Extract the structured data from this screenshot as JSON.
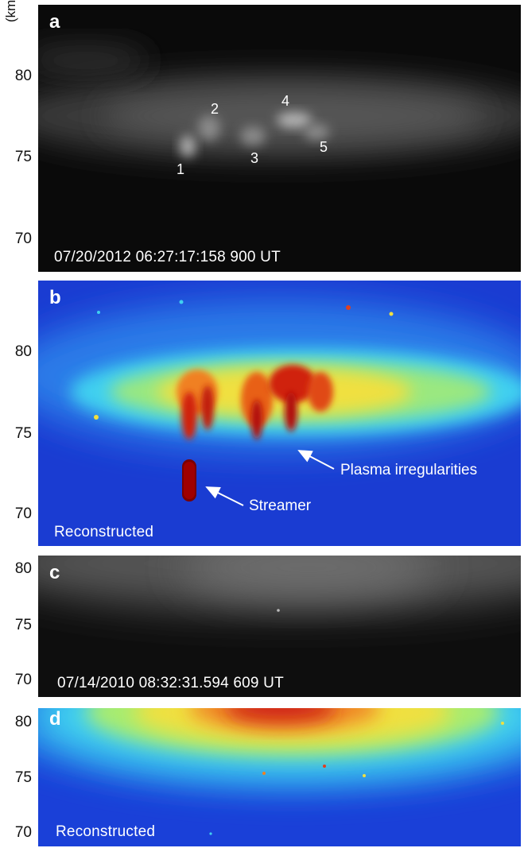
{
  "axis": {
    "unit": "(km)",
    "ticks_a": [
      "80",
      "75",
      "70"
    ],
    "ticks_b": [
      "80",
      "75",
      "70"
    ],
    "ticks_c": [
      "80",
      "75",
      "70"
    ],
    "ticks_d": [
      "80",
      "75",
      "70"
    ]
  },
  "panel_a": {
    "label": "a",
    "timestamp": "07/20/2012  06:27:17:158 900 UT",
    "markers": [
      "1",
      "2",
      "3",
      "4",
      "5"
    ]
  },
  "panel_b": {
    "label": "b",
    "caption": "Reconstructed",
    "annotation_streamer": "Streamer",
    "annotation_plasma": "Plasma irregularities"
  },
  "panel_c": {
    "label": "c",
    "timestamp": "07/14/2010  08:32:31.594 609 UT"
  },
  "panel_d": {
    "label": "d",
    "caption": "Reconstructed"
  },
  "colors": {
    "background_dark": "#0b0b0b",
    "jet_blue": "#1840d8",
    "jet_cyan": "#30c8f0",
    "jet_yellow": "#f0e040",
    "jet_red": "#c01010",
    "jet_darkred": "#700000"
  }
}
